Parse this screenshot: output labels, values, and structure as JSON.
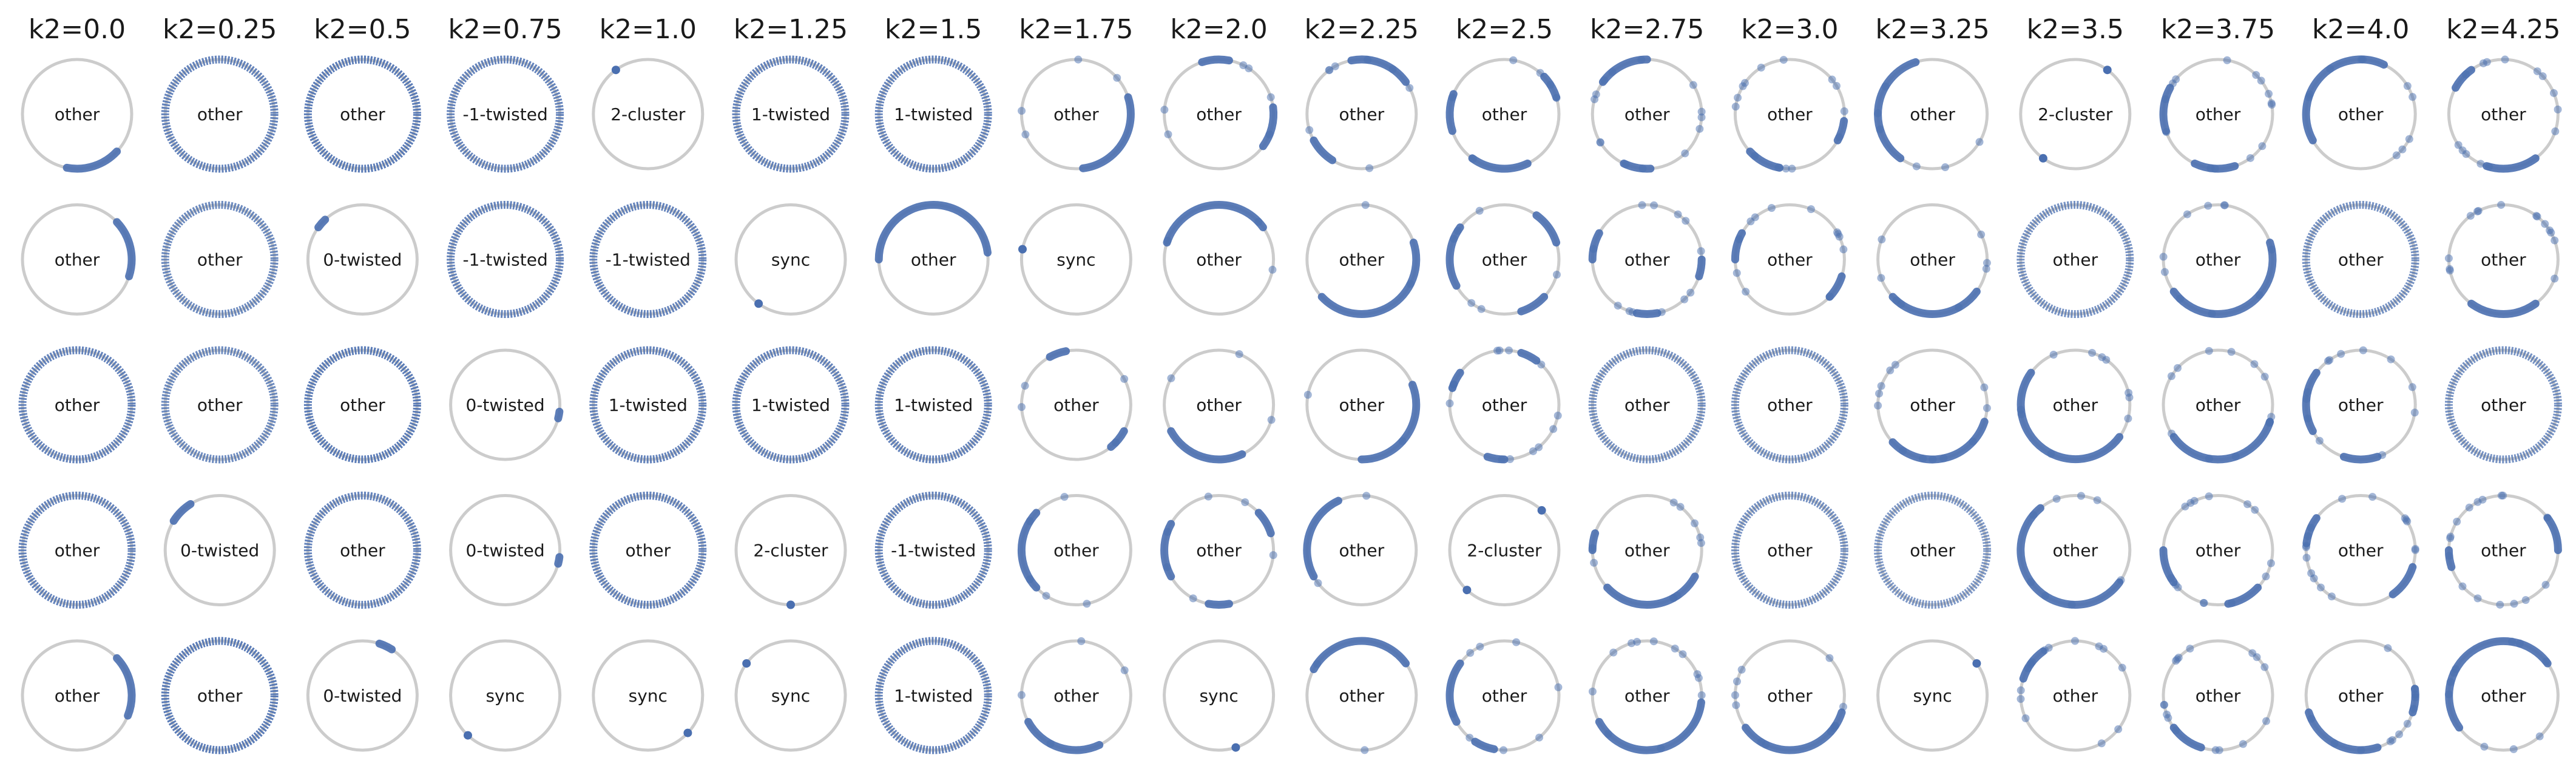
{
  "figure": {
    "columns": [
      {
        "title": "k2=0.0",
        "cells": [
          {
            "label": "other",
            "arcs": [
              [
                0.72,
                0.88
              ]
            ],
            "scatter": 0
          },
          {
            "label": "other",
            "arcs": [
              [
                0.95,
                1.12
              ]
            ],
            "scatter": 0
          },
          {
            "label": "other",
            "ring": 0.85
          },
          {
            "label": "other",
            "ring": 0.85
          },
          {
            "label": "other",
            "arcs": [
              [
                0.94,
                1.12
              ]
            ],
            "scatter": 0
          }
        ]
      },
      {
        "title": "k2=0.25",
        "cells": [
          {
            "label": "other",
            "ring": 0.85
          },
          {
            "label": "other",
            "ring": 0.8
          },
          {
            "label": "other",
            "ring": 0.8
          },
          {
            "label": "0-twisted",
            "arcs": [
              [
                0.34,
                0.41
              ]
            ],
            "scatter": 0
          },
          {
            "label": "other",
            "ring": 0.9
          }
        ]
      },
      {
        "title": "k2=0.5",
        "cells": [
          {
            "label": "other",
            "ring": 0.9
          },
          {
            "label": "0-twisted",
            "arcs": [
              [
                0.37,
                0.4
              ]
            ],
            "scatter": 0
          },
          {
            "label": "other",
            "ring": 0.9
          },
          {
            "label": "other",
            "ring": 0.85
          },
          {
            "label": "0-twisted",
            "arcs": [
              [
                0.16,
                0.2
              ]
            ],
            "scatter": 0
          }
        ]
      },
      {
        "title": "k2=0.75",
        "cells": [
          {
            "label": "-1-twisted",
            "ring": 0.85
          },
          {
            "label": "-1-twisted",
            "ring": 0.85
          },
          {
            "label": "0-twisted",
            "arcs": [
              [
                0.96,
                0.98
              ]
            ],
            "scatter": 0
          },
          {
            "label": "0-twisted",
            "arcs": [
              [
                0.96,
                0.98
              ]
            ],
            "scatter": 0
          },
          {
            "label": "sync",
            "arcs": [
              [
                0.625,
                0.635
              ]
            ],
            "scatter": 0
          }
        ]
      },
      {
        "title": "k2=1.0",
        "cells": [
          {
            "label": "2-cluster",
            "arcs": [
              [
                0.345,
                0.355
              ]
            ],
            "scatter": 0
          },
          {
            "label": "-1-twisted",
            "ring": 0.85
          },
          {
            "label": "1-twisted",
            "ring": 0.85
          },
          {
            "label": "other",
            "ring": 0.85
          },
          {
            "label": "sync",
            "arcs": [
              [
                0.875,
                0.885
              ]
            ],
            "scatter": 0
          }
        ]
      },
      {
        "title": "k2=1.25",
        "cells": [
          {
            "label": "1-twisted",
            "ring": 0.85
          },
          {
            "label": "sync",
            "arcs": [
              [
                0.645,
                0.655
              ]
            ],
            "scatter": 0
          },
          {
            "label": "1-twisted",
            "ring": 0.85
          },
          {
            "label": "2-cluster",
            "arcs": [
              [
                0.745,
                0.755
              ]
            ],
            "scatter": 0
          },
          {
            "label": "sync",
            "arcs": [
              [
                0.395,
                0.405
              ]
            ],
            "scatter": 0
          }
        ]
      },
      {
        "title": "k2=1.5",
        "cells": [
          {
            "label": "1-twisted",
            "ring": 0.85
          },
          {
            "label": "other",
            "arcs": [
              [
                0.02,
                0.5
              ]
            ],
            "scatter": 0
          },
          {
            "label": "1-twisted",
            "ring": 0.85
          },
          {
            "label": "-1-twisted",
            "ring": 0.85
          },
          {
            "label": "1-twisted",
            "ring": 0.85
          }
        ]
      },
      {
        "title": "k2=1.75",
        "cells": [
          {
            "label": "other",
            "arcs": [
              [
                0.77,
                1.05
              ]
            ],
            "scatter": 4
          },
          {
            "label": "sync",
            "arcs": [
              [
                0.465,
                0.475
              ]
            ],
            "scatter": 0
          },
          {
            "label": "other",
            "arcs": [
              [
                0.86,
                0.92
              ],
              [
                0.28,
                0.33
              ]
            ],
            "scatter": 4
          },
          {
            "label": "other",
            "arcs": [
              [
                0.38,
                0.62
              ]
            ],
            "scatter": 5
          },
          {
            "label": "other",
            "arcs": [
              [
                0.58,
                0.82
              ]
            ],
            "scatter": 4
          }
        ]
      },
      {
        "title": "k2=2.0",
        "cells": [
          {
            "label": "other",
            "arcs": [
              [
                0.9,
                1.02
              ],
              [
                0.22,
                0.3
              ]
            ],
            "scatter": 6
          },
          {
            "label": "other",
            "arcs": [
              [
                0.1,
                0.45
              ]
            ],
            "scatter": 3
          },
          {
            "label": "other",
            "arcs": [
              [
                0.58,
                0.82
              ]
            ],
            "scatter": 3
          },
          {
            "label": "other",
            "arcs": [
              [
                0.42,
                0.58
              ],
              [
                0.72,
                0.78
              ],
              [
                0.05,
                0.12
              ]
            ],
            "scatter": 6
          },
          {
            "label": "sync",
            "arcs": [
              [
                0.795,
                0.805
              ]
            ],
            "scatter": 0
          }
        ]
      },
      {
        "title": "k2=2.25",
        "cells": [
          {
            "label": "other",
            "arcs": [
              [
                0.1,
                0.28
              ],
              [
                0.58,
                0.66
              ]
            ],
            "scatter": 8
          },
          {
            "label": "other",
            "arcs": [
              [
                0.62,
                1.05
              ]
            ],
            "scatter": 2
          },
          {
            "label": "other",
            "arcs": [
              [
                0.75,
                1.06
              ]
            ],
            "scatter": 2
          },
          {
            "label": "other",
            "arcs": [
              [
                0.32,
                0.58
              ]
            ],
            "scatter": 2
          },
          {
            "label": "other",
            "arcs": [
              [
                0.1,
                0.42
              ]
            ],
            "scatter": 2
          }
        ]
      },
      {
        "title": "k2=2.5",
        "cells": [
          {
            "label": "other",
            "arcs": [
              [
                0.65,
                0.82
              ],
              [
                0.44,
                0.55
              ],
              [
                0.05,
                0.12
              ]
            ],
            "scatter": 6
          },
          {
            "label": "other",
            "arcs": [
              [
                0.4,
                0.58
              ],
              [
                0.05,
                0.15
              ],
              [
                0.8,
                0.88
              ]
            ],
            "scatter": 6
          },
          {
            "label": "other",
            "arcs": [
              [
                0.15,
                0.2
              ],
              [
                0.4,
                0.45
              ],
              [
                0.7,
                0.75
              ]
            ],
            "scatter": 14
          },
          {
            "label": "2-cluster",
            "arcs": [
              [
                0.625,
                0.635
              ],
              [
                0.125,
                0.135
              ]
            ],
            "scatter": 0
          },
          {
            "label": "other",
            "arcs": [
              [
                0.4,
                0.58
              ],
              [
                0.66,
                0.72
              ]
            ],
            "scatter": 8
          }
        ]
      },
      {
        "title": "k2=2.75",
        "cells": [
          {
            "label": "other",
            "arcs": [
              [
                0.25,
                0.4
              ],
              [
                0.68,
                0.76
              ]
            ],
            "scatter": 14
          },
          {
            "label": "other",
            "arcs": [
              [
                0.42,
                0.5
              ],
              [
                0.72,
                0.78
              ],
              [
                0.95,
                1.0
              ]
            ],
            "scatter": 12
          },
          {
            "label": "other",
            "ring": 0.75
          },
          {
            "label": "other",
            "arcs": [
              [
                0.62,
                0.92
              ],
              [
                0.45,
                0.5
              ]
            ],
            "scatter": 10
          },
          {
            "label": "other",
            "arcs": [
              [
                0.58,
                0.98
              ]
            ],
            "scatter": 12
          }
        ]
      },
      {
        "title": "k2=3.0",
        "cells": [
          {
            "label": "other",
            "arcs": [
              [
                0.62,
                0.72
              ],
              [
                0.92,
                0.98
              ]
            ],
            "scatter": 14
          },
          {
            "label": "other",
            "arcs": [
              [
                0.42,
                0.5
              ],
              [
                0.88,
                0.95
              ]
            ],
            "scatter": 12
          },
          {
            "label": "other",
            "ring": 0.75
          },
          {
            "label": "other",
            "ring": 0.75
          },
          {
            "label": "other",
            "arcs": [
              [
                0.6,
                0.95
              ]
            ],
            "scatter": 12
          }
        ]
      },
      {
        "title": "k2=3.25",
        "cells": [
          {
            "label": "other",
            "arcs": [
              [
                0.3,
                0.65
              ]
            ],
            "scatter": 6
          },
          {
            "label": "other",
            "arcs": [
              [
                0.62,
                0.9
              ]
            ],
            "scatter": 8
          },
          {
            "label": "other",
            "arcs": [
              [
                0.62,
                0.95
              ]
            ],
            "scatter": 12
          },
          {
            "label": "other",
            "ring": 0.7
          },
          {
            "label": "sync",
            "arcs": [
              [
                0.095,
                0.105
              ]
            ],
            "scatter": 0
          }
        ]
      },
      {
        "title": "k2=3.5",
        "cells": [
          {
            "label": "2-cluster",
            "arcs": [
              [
                0.645,
                0.655
              ],
              [
                0.145,
                0.155
              ]
            ],
            "scatter": 0
          },
          {
            "label": "other",
            "ring": 0.75
          },
          {
            "label": "other",
            "arcs": [
              [
                0.4,
                0.9
              ]
            ],
            "scatter": 10
          },
          {
            "label": "other",
            "arcs": [
              [
                0.36,
                0.9
              ]
            ],
            "scatter": 8
          },
          {
            "label": "other",
            "arcs": [
              [
                0.35,
                0.45
              ]
            ],
            "scatter": 14
          }
        ]
      },
      {
        "title": "k2=3.75",
        "cells": [
          {
            "label": "other",
            "arcs": [
              [
                0.42,
                0.55
              ],
              [
                0.68,
                0.8
              ]
            ],
            "scatter": 14
          },
          {
            "label": "other",
            "arcs": [
              [
                0.6,
                1.05
              ]
            ],
            "scatter": 10
          },
          {
            "label": "other",
            "arcs": [
              [
                0.6,
                0.95
              ]
            ],
            "scatter": 12
          },
          {
            "label": "other",
            "arcs": [
              [
                0.5,
                0.6
              ],
              [
                0.78,
                0.88
              ]
            ],
            "scatter": 14
          },
          {
            "label": "other",
            "arcs": [
              [
                0.6,
                0.7
              ]
            ],
            "scatter": 16
          }
        ]
      },
      {
        "title": "k2=4.0",
        "cells": [
          {
            "label": "other",
            "arcs": [
              [
                0.18,
                0.58
              ]
            ],
            "scatter": 10
          },
          {
            "label": "other",
            "ring": 0.75
          },
          {
            "label": "other",
            "arcs": [
              [
                0.4,
                0.58
              ],
              [
                0.7,
                0.8
              ]
            ],
            "scatter": 12
          },
          {
            "label": "other",
            "arcs": [
              [
                0.4,
                0.48
              ],
              [
                0.85,
                0.95
              ]
            ],
            "scatter": 16
          },
          {
            "label": "other",
            "arcs": [
              [
                0.55,
                0.8
              ],
              [
                0.95,
                1.02
              ]
            ],
            "scatter": 12
          }
        ]
      },
      {
        "title": "k2=4.25",
        "cells": [
          {
            "label": "other",
            "arcs": [
              [
                0.7,
                0.85
              ],
              [
                0.35,
                0.42
              ]
            ],
            "scatter": 14
          },
          {
            "label": "other",
            "arcs": [
              [
                0.65,
                0.85
              ]
            ],
            "scatter": 14
          },
          {
            "label": "other",
            "ring": 0.75
          },
          {
            "label": "other",
            "arcs": [
              [
                0.0,
                0.1
              ],
              [
                0.5,
                0.55
              ]
            ],
            "scatter": 16
          },
          {
            "label": "other",
            "arcs": [
              [
                0.1,
                0.6
              ]
            ],
            "scatter": 10
          }
        ]
      }
    ]
  },
  "colors": {
    "ring": "#cccccc",
    "phase": "#4a6fb0",
    "title": "#1a1a1a",
    "label": "#1a1a1a"
  }
}
